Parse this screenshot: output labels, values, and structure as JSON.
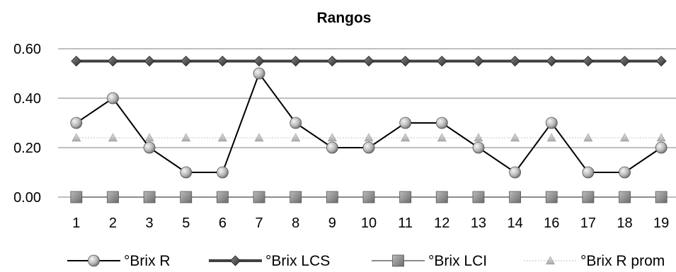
{
  "chart_data": {
    "type": "line",
    "title": "Rangos",
    "xlabel": "",
    "ylabel": "",
    "categories": [
      "1",
      "2",
      "3",
      "5",
      "6",
      "7",
      "8",
      "9",
      "10",
      "11",
      "12",
      "13",
      "14",
      "16",
      "17",
      "18",
      "19"
    ],
    "ylim": [
      0,
      0.6
    ],
    "yticks": [
      "0.00",
      "0.20",
      "0.40",
      "0.60"
    ],
    "ytick_values": [
      0,
      0.2,
      0.4,
      0.6
    ],
    "grid": "horizontal",
    "legend_position": "bottom",
    "series": [
      {
        "name": "°Brix R",
        "marker": "sphere",
        "color": "#000000",
        "values": [
          0.3,
          0.4,
          0.2,
          0.1,
          0.1,
          0.5,
          0.3,
          0.2,
          0.2,
          0.3,
          0.3,
          0.2,
          0.1,
          0.3,
          0.1,
          0.1,
          0.2
        ]
      },
      {
        "name": "°Brix LCS",
        "marker": "diamond",
        "color": "#404040",
        "values": [
          0.55,
          0.55,
          0.55,
          0.55,
          0.55,
          0.55,
          0.55,
          0.55,
          0.55,
          0.55,
          0.55,
          0.55,
          0.55,
          0.55,
          0.55,
          0.55,
          0.55
        ]
      },
      {
        "name": "°Brix LCI",
        "marker": "square",
        "color": "#808080",
        "values": [
          0,
          0,
          0,
          0,
          0,
          0,
          0,
          0,
          0,
          0,
          0,
          0,
          0,
          0,
          0,
          0,
          0
        ]
      },
      {
        "name": "°Brix R prom",
        "marker": "triangle",
        "color": "#b0b0b0",
        "values": [
          0.24,
          0.24,
          0.24,
          0.24,
          0.24,
          0.24,
          0.24,
          0.24,
          0.24,
          0.24,
          0.24,
          0.24,
          0.24,
          0.24,
          0.24,
          0.24,
          0.24
        ]
      }
    ]
  }
}
